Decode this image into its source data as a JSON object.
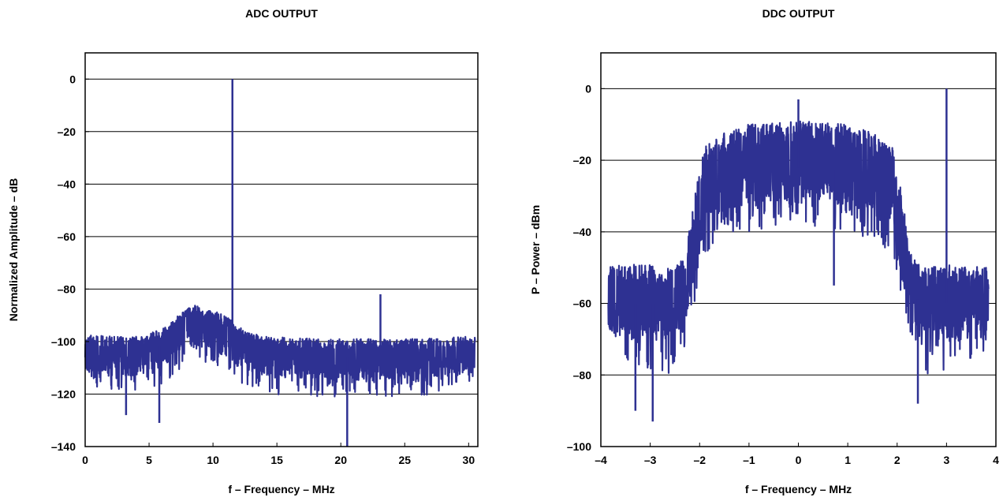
{
  "chart_data": [
    {
      "type": "line",
      "title": "ADC OUTPUT",
      "xlabel": "f – Frequency – MHz",
      "ylabel": "Normalized Amplitude – dB",
      "xlim": [
        0,
        30.72
      ],
      "ylim": [
        -140,
        10
      ],
      "xticks": [
        0,
        5,
        10,
        15,
        20,
        25,
        30
      ],
      "xtick_labels": [
        "0",
        "5",
        "10",
        "15",
        "20",
        "25",
        "30"
      ],
      "yticks": [
        0,
        -20,
        -40,
        -60,
        -80,
        -100,
        -120,
        -140
      ],
      "ytick_labels": [
        "0",
        "–20",
        "–40",
        "–60",
        "–80",
        "–100",
        "–120",
        "–140"
      ],
      "grid": "horizontal",
      "color": "#2e3192",
      "series": [
        {
          "kind": "noise_floor_envelope",
          "x": [
            0,
            2,
            4,
            5.5,
            6.5,
            7.5,
            8.5,
            9.5,
            10.5,
            11.5,
            12.5,
            14,
            18,
            22,
            26,
            30.5
          ],
          "y_median": [
            -105,
            -105,
            -105,
            -103,
            -99,
            -94,
            -92,
            -93,
            -96,
            -98,
            -102,
            -105,
            -106,
            -106,
            -106,
            -105
          ],
          "y_top": [
            -97,
            -98,
            -98,
            -96,
            -94,
            -89,
            -86,
            -88,
            -89,
            -92,
            -96,
            -98,
            -99,
            -99,
            -99,
            -98
          ],
          "y_bottom": [
            -117,
            -118,
            -119,
            -120,
            -115,
            -110,
            -108,
            -109,
            -112,
            -115,
            -118,
            -120,
            -121,
            -121,
            -121,
            -118
          ]
        },
        {
          "kind": "spurs",
          "x": [
            11.52,
            23.1,
            20.5,
            5.8,
            3.2
          ],
          "y": [
            0,
            -82,
            -140,
            -131,
            -128
          ]
        }
      ]
    },
    {
      "type": "line",
      "title": "DDC OUTPUT",
      "xlabel": "f – Frequency – MHz",
      "ylabel": "P – Power – dBm",
      "xlim": [
        -4,
        4
      ],
      "ylim": [
        -100,
        10
      ],
      "xticks": [
        -4,
        -3,
        -2,
        -1,
        0,
        1,
        2,
        3,
        4
      ],
      "xtick_labels": [
        "–4",
        "–3",
        "–2",
        "–1",
        "0",
        "1",
        "2",
        "3",
        "4"
      ],
      "yticks": [
        0,
        -20,
        -40,
        -60,
        -80,
        -100
      ],
      "ytick_labels": [
        "0",
        "–20",
        "–40",
        "–60",
        "–80",
        "–100"
      ],
      "grid": "horizontal",
      "color": "#2e3192",
      "series": [
        {
          "kind": "noise_floor_envelope",
          "x": [
            -3.85,
            -3.2,
            -2.5,
            -2.3,
            -2.1,
            -1.9,
            -1.5,
            -1,
            0,
            1,
            1.5,
            1.9,
            2.1,
            2.3,
            2.5,
            3.2,
            3.85
          ],
          "y_median": [
            -60,
            -60,
            -60,
            -57,
            -45,
            -28,
            -24,
            -23,
            -22,
            -23,
            -24,
            -28,
            -45,
            -57,
            -60,
            -60,
            -60
          ],
          "y_top": [
            -49,
            -49,
            -50,
            -47,
            -30,
            -16,
            -12,
            -10,
            -9,
            -10,
            -12,
            -16,
            -30,
            -47,
            -50,
            -49,
            -50
          ],
          "y_bottom": [
            -73,
            -78,
            -80,
            -72,
            -60,
            -47,
            -42,
            -40,
            -38,
            -40,
            -42,
            -47,
            -60,
            -72,
            -80,
            -78,
            -74
          ]
        },
        {
          "kind": "spurs",
          "x": [
            0.0,
            3.0,
            -2.95,
            0.72,
            -3.3,
            2.42
          ],
          "y": [
            -3,
            0,
            -93,
            -55,
            -90,
            -88
          ]
        }
      ]
    }
  ]
}
